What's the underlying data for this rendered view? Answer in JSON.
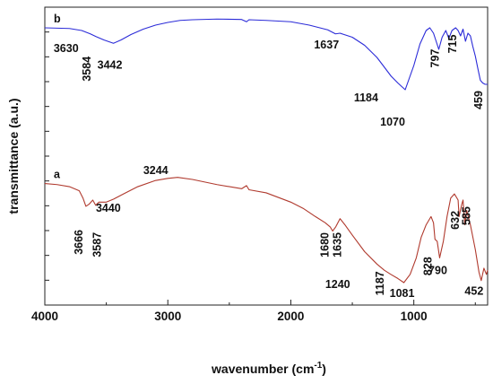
{
  "chart_data": {
    "type": "line",
    "xlabel_main": "wavenumber (cm",
    "xlabel_sup": "-1",
    "xlabel_close": ")",
    "ylabel": "transmittance (a.u.)",
    "xlim": [
      4000,
      400
    ],
    "x_reversed": true,
    "x_ticks": [
      4000,
      3000,
      2000,
      1000
    ],
    "y_tick_labels_shown": false,
    "series": [
      {
        "name": "b",
        "color": "#2b2bd8",
        "points": [
          [
            4000,
            0.86
          ],
          [
            3800,
            0.855
          ],
          [
            3700,
            0.84
          ],
          [
            3630,
            0.815
          ],
          [
            3584,
            0.795
          ],
          [
            3520,
            0.77
          ],
          [
            3442,
            0.745
          ],
          [
            3380,
            0.77
          ],
          [
            3300,
            0.81
          ],
          [
            3200,
            0.85
          ],
          [
            3100,
            0.88
          ],
          [
            3000,
            0.9
          ],
          [
            2900,
            0.915
          ],
          [
            2800,
            0.92
          ],
          [
            2600,
            0.925
          ],
          [
            2400,
            0.922
          ],
          [
            2360,
            0.905
          ],
          [
            2340,
            0.92
          ],
          [
            2200,
            0.915
          ],
          [
            2000,
            0.905
          ],
          [
            1850,
            0.88
          ],
          [
            1700,
            0.845
          ],
          [
            1637,
            0.815
          ],
          [
            1600,
            0.82
          ],
          [
            1500,
            0.79
          ],
          [
            1400,
            0.73
          ],
          [
            1300,
            0.64
          ],
          [
            1250,
            0.58
          ],
          [
            1184,
            0.5
          ],
          [
            1130,
            0.45
          ],
          [
            1070,
            0.4
          ],
          [
            1000,
            0.58
          ],
          [
            950,
            0.74
          ],
          [
            900,
            0.84
          ],
          [
            870,
            0.86
          ],
          [
            840,
            0.82
          ],
          [
            797,
            0.7
          ],
          [
            770,
            0.79
          ],
          [
            740,
            0.84
          ],
          [
            715,
            0.78
          ],
          [
            690,
            0.84
          ],
          [
            660,
            0.86
          ],
          [
            640,
            0.84
          ],
          [
            620,
            0.8
          ],
          [
            600,
            0.85
          ],
          [
            580,
            0.76
          ],
          [
            560,
            0.82
          ],
          [
            540,
            0.8
          ],
          [
            520,
            0.72
          ],
          [
            500,
            0.65
          ],
          [
            480,
            0.56
          ],
          [
            459,
            0.47
          ],
          [
            440,
            0.45
          ],
          [
            420,
            0.44
          ],
          [
            400,
            0.44
          ]
        ],
        "peak_labels": [
          {
            "text": "3630",
            "wn": 3630
          },
          {
            "text": "3584",
            "wn": 3584
          },
          {
            "text": "3442",
            "wn": 3442
          },
          {
            "text": "1637",
            "wn": 1637
          },
          {
            "text": "1184",
            "wn": 1184
          },
          {
            "text": "1070",
            "wn": 1070
          },
          {
            "text": "797",
            "wn": 797
          },
          {
            "text": "715",
            "wn": 715
          },
          {
            "text": "459",
            "wn": 459
          }
        ]
      },
      {
        "name": "a",
        "color": "#b03a2e",
        "points": [
          [
            4000,
            0.58
          ],
          [
            3900,
            0.575
          ],
          [
            3800,
            0.565
          ],
          [
            3720,
            0.545
          ],
          [
            3690,
            0.51
          ],
          [
            3666,
            0.47
          ],
          [
            3640,
            0.48
          ],
          [
            3610,
            0.5
          ],
          [
            3587,
            0.475
          ],
          [
            3560,
            0.49
          ],
          [
            3500,
            0.49
          ],
          [
            3440,
            0.505
          ],
          [
            3360,
            0.53
          ],
          [
            3244,
            0.565
          ],
          [
            3100,
            0.595
          ],
          [
            3000,
            0.605
          ],
          [
            2920,
            0.61
          ],
          [
            2800,
            0.6
          ],
          [
            2600,
            0.575
          ],
          [
            2400,
            0.555
          ],
          [
            2360,
            0.57
          ],
          [
            2340,
            0.55
          ],
          [
            2200,
            0.535
          ],
          [
            2000,
            0.49
          ],
          [
            1900,
            0.46
          ],
          [
            1800,
            0.42
          ],
          [
            1720,
            0.39
          ],
          [
            1680,
            0.37
          ],
          [
            1660,
            0.35
          ],
          [
            1635,
            0.37
          ],
          [
            1600,
            0.41
          ],
          [
            1560,
            0.38
          ],
          [
            1500,
            0.33
          ],
          [
            1400,
            0.25
          ],
          [
            1300,
            0.19
          ],
          [
            1240,
            0.16
          ],
          [
            1187,
            0.14
          ],
          [
            1130,
            0.12
          ],
          [
            1081,
            0.1
          ],
          [
            1030,
            0.14
          ],
          [
            980,
            0.22
          ],
          [
            940,
            0.32
          ],
          [
            900,
            0.38
          ],
          [
            860,
            0.42
          ],
          [
            840,
            0.39
          ],
          [
            828,
            0.31
          ],
          [
            810,
            0.3
          ],
          [
            790,
            0.22
          ],
          [
            760,
            0.3
          ],
          [
            730,
            0.42
          ],
          [
            700,
            0.51
          ],
          [
            670,
            0.53
          ],
          [
            640,
            0.5
          ],
          [
            632,
            0.42
          ],
          [
            610,
            0.48
          ],
          [
            600,
            0.5
          ],
          [
            585,
            0.38
          ],
          [
            570,
            0.45
          ],
          [
            540,
            0.38
          ],
          [
            500,
            0.26
          ],
          [
            470,
            0.15
          ],
          [
            452,
            0.11
          ],
          [
            430,
            0.17
          ],
          [
            410,
            0.14
          ],
          [
            400,
            0.16
          ]
        ],
        "peak_labels": [
          {
            "text": "3666",
            "wn": 3666
          },
          {
            "text": "3587",
            "wn": 3587
          },
          {
            "text": "3440",
            "wn": 3440
          },
          {
            "text": "3244",
            "wn": 3244
          },
          {
            "text": "1680",
            "wn": 1680
          },
          {
            "text": "1635",
            "wn": 1635
          },
          {
            "text": "1240",
            "wn": 1240
          },
          {
            "text": "1187",
            "wn": 1187
          },
          {
            "text": "1081",
            "wn": 1081
          },
          {
            "text": "828",
            "wn": 828
          },
          {
            "text": "790",
            "wn": 790
          },
          {
            "text": "632",
            "wn": 632
          },
          {
            "text": "585",
            "wn": 585
          },
          {
            "text": "452",
            "wn": 452
          }
        ]
      }
    ]
  }
}
